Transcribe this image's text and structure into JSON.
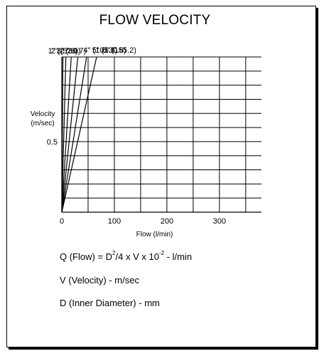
{
  "chart_data": {
    "type": "line",
    "title": "FLOW VELOCITY",
    "xlabel": "Flow (l/min)",
    "ylabel": [
      "Velocity",
      "(m/sec)"
    ],
    "xlim": [
      0,
      380
    ],
    "ylim": [
      0,
      1.1
    ],
    "xticks": [
      0,
      100,
      200,
      300
    ],
    "yticks": [
      0.5
    ],
    "x_grid_step": 50,
    "y_grid_step": 0.1,
    "grid": true,
    "series": [
      {
        "name": "1\" (27.6)",
        "diameter_mm": 27.6,
        "label_side": "top"
      },
      {
        "name": "2\" (52.9)",
        "diameter_mm": 52.9,
        "label_side": "top"
      },
      {
        "name": "3\" (80.7)",
        "diameter_mm": 80.7,
        "label_side": "top"
      },
      {
        "name": "4\" (105.3)",
        "diameter_mm": 105.3,
        "label_side": "right"
      },
      {
        "name": "5\" (130.8)",
        "diameter_mm": 130.8,
        "label_side": "right"
      },
      {
        "name": "6\" (155.2)",
        "diameter_mm": 155.2,
        "label_side": "right"
      }
    ]
  },
  "formulas": {
    "q_prefix": "Q (Flow) = D",
    "q_exp1": "2",
    "q_mid": "/4 x V x 10",
    "q_exp2": "-2",
    "q_suffix": " - l/min",
    "v_def": "V (Velocity) - m/sec",
    "d_def": "D (Inner Diameter) - mm"
  }
}
